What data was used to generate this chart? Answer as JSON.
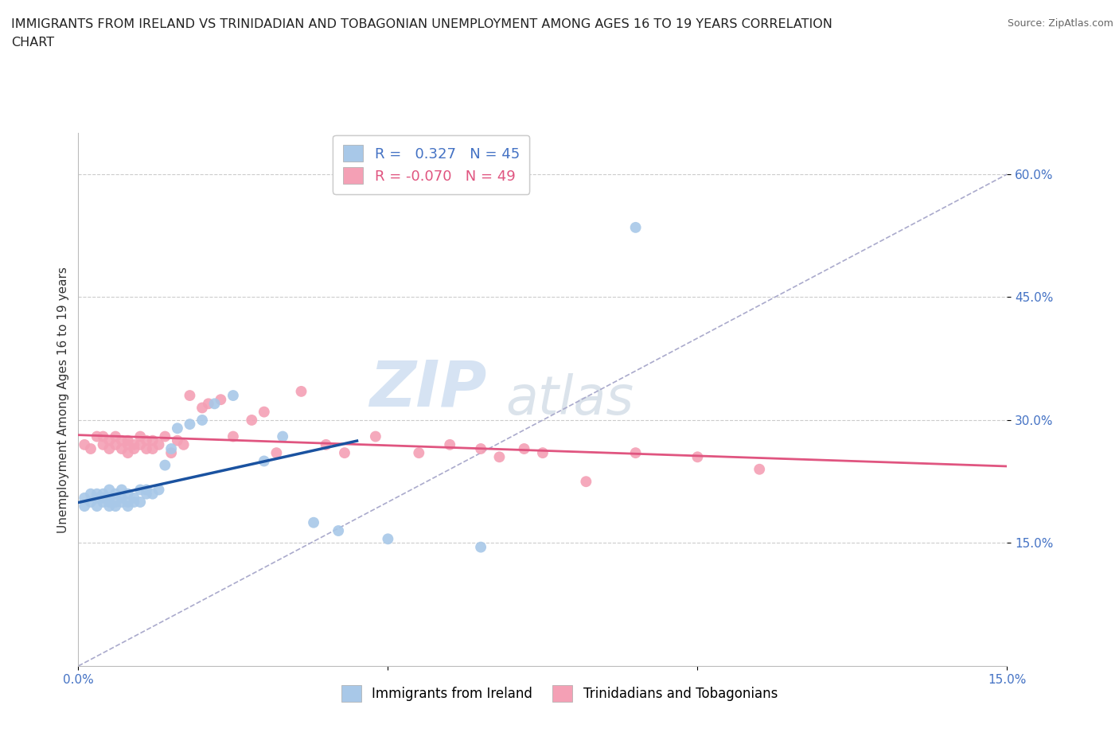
{
  "title_line1": "IMMIGRANTS FROM IRELAND VS TRINIDADIAN AND TOBAGONIAN UNEMPLOYMENT AMONG AGES 16 TO 19 YEARS CORRELATION",
  "title_line2": "CHART",
  "source": "Source: ZipAtlas.com",
  "ylabel": "Unemployment Among Ages 16 to 19 years",
  "xlim": [
    0.0,
    0.15
  ],
  "ylim": [
    0.0,
    0.65
  ],
  "xticks": [
    0.0,
    0.05,
    0.1,
    0.15
  ],
  "xticklabels": [
    "0.0%",
    "",
    "",
    "15.0%"
  ],
  "yticks": [
    0.15,
    0.3,
    0.45,
    0.6
  ],
  "yticklabels": [
    "15.0%",
    "30.0%",
    "45.0%",
    "60.0%"
  ],
  "r_ireland": 0.327,
  "n_ireland": 45,
  "r_trini": -0.07,
  "n_trini": 49,
  "watermark_zip": "ZIP",
  "watermark_atlas": "atlas",
  "ireland_color": "#a8c8e8",
  "trini_color": "#f4a0b5",
  "ireland_line_color": "#1a52a0",
  "trini_line_color": "#e05580",
  "legend_ireland": "Immigrants from Ireland",
  "legend_trini": "Trinidadians and Tobagonians",
  "tick_color": "#4472c4",
  "ireland_x": [
    0.001,
    0.001,
    0.002,
    0.002,
    0.003,
    0.003,
    0.003,
    0.004,
    0.004,
    0.004,
    0.005,
    0.005,
    0.005,
    0.005,
    0.006,
    0.006,
    0.006,
    0.007,
    0.007,
    0.007,
    0.008,
    0.008,
    0.008,
    0.009,
    0.009,
    0.01,
    0.01,
    0.011,
    0.011,
    0.012,
    0.013,
    0.014,
    0.015,
    0.016,
    0.018,
    0.02,
    0.022,
    0.025,
    0.03,
    0.033,
    0.038,
    0.042,
    0.05,
    0.065,
    0.09
  ],
  "ireland_y": [
    0.195,
    0.205,
    0.2,
    0.21,
    0.195,
    0.205,
    0.21,
    0.2,
    0.205,
    0.21,
    0.195,
    0.2,
    0.205,
    0.215,
    0.195,
    0.2,
    0.21,
    0.2,
    0.205,
    0.215,
    0.195,
    0.2,
    0.21,
    0.2,
    0.205,
    0.2,
    0.215,
    0.21,
    0.215,
    0.21,
    0.215,
    0.245,
    0.265,
    0.29,
    0.295,
    0.3,
    0.32,
    0.33,
    0.25,
    0.28,
    0.175,
    0.165,
    0.155,
    0.145,
    0.535
  ],
  "trini_x": [
    0.001,
    0.002,
    0.003,
    0.004,
    0.004,
    0.005,
    0.005,
    0.006,
    0.006,
    0.007,
    0.007,
    0.008,
    0.008,
    0.008,
    0.009,
    0.009,
    0.01,
    0.01,
    0.011,
    0.011,
    0.012,
    0.012,
    0.013,
    0.014,
    0.015,
    0.016,
    0.017,
    0.018,
    0.02,
    0.021,
    0.023,
    0.025,
    0.028,
    0.03,
    0.032,
    0.036,
    0.04,
    0.043,
    0.048,
    0.055,
    0.06,
    0.065,
    0.068,
    0.072,
    0.075,
    0.082,
    0.09,
    0.1,
    0.11
  ],
  "trini_y": [
    0.27,
    0.265,
    0.28,
    0.27,
    0.28,
    0.265,
    0.275,
    0.27,
    0.28,
    0.265,
    0.275,
    0.27,
    0.26,
    0.275,
    0.27,
    0.265,
    0.27,
    0.28,
    0.265,
    0.275,
    0.265,
    0.275,
    0.27,
    0.28,
    0.26,
    0.275,
    0.27,
    0.33,
    0.315,
    0.32,
    0.325,
    0.28,
    0.3,
    0.31,
    0.26,
    0.335,
    0.27,
    0.26,
    0.28,
    0.26,
    0.27,
    0.265,
    0.255,
    0.265,
    0.26,
    0.225,
    0.26,
    0.255,
    0.24
  ]
}
